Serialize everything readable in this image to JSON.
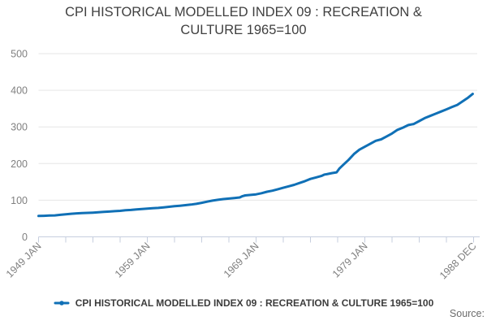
{
  "title": "CPI HISTORICAL MODELLED INDEX 09 : RECREATION & CULTURE 1965=100",
  "legend": {
    "label": "CPI HISTORICAL MODELLED INDEX 09 : RECREATION & CULTURE 1965=100",
    "marker_icon": "line-with-dot-icon"
  },
  "source_label": "Source:",
  "colors": {
    "line": "#1070b6",
    "grid": "#e6e6e6",
    "axis": "#c6cede",
    "tick_text": "#808080",
    "title_text": "#404040",
    "legend_text": "#3c3c3c",
    "source_text": "#6b6b6b",
    "background": "#ffffff"
  },
  "chart_data": {
    "type": "line",
    "title": "CPI HISTORICAL MODELLED INDEX 09 : RECREATION & CULTURE 1965=100",
    "xlabel": "",
    "ylabel": "",
    "grid": "horizontal",
    "legend_position": "bottom",
    "xlim": [
      1949,
      1989
    ],
    "ylim": [
      0,
      500
    ],
    "y_ticks": [
      0,
      100,
      200,
      300,
      400,
      500
    ],
    "x_ticks": [
      {
        "pos": 1949,
        "label": "1949 JAN"
      },
      {
        "pos": 1951.5,
        "label": ""
      },
      {
        "pos": 1954,
        "label": ""
      },
      {
        "pos": 1956.5,
        "label": ""
      },
      {
        "pos": 1959,
        "label": "1959 JAN"
      },
      {
        "pos": 1961.5,
        "label": ""
      },
      {
        "pos": 1964,
        "label": ""
      },
      {
        "pos": 1966.5,
        "label": ""
      },
      {
        "pos": 1969,
        "label": "1969 JAN"
      },
      {
        "pos": 1971.5,
        "label": ""
      },
      {
        "pos": 1974,
        "label": ""
      },
      {
        "pos": 1976.5,
        "label": ""
      },
      {
        "pos": 1979,
        "label": "1979 JAN"
      },
      {
        "pos": 1981.5,
        "label": ""
      },
      {
        "pos": 1984,
        "label": ""
      },
      {
        "pos": 1986.5,
        "label": ""
      },
      {
        "pos": 1989,
        "label": "1988 DEC"
      }
    ],
    "series": [
      {
        "name": "CPI HISTORICAL MODELLED INDEX 09 : RECREATION & CULTURE 1965=100",
        "points": [
          [
            1949,
            57
          ],
          [
            1949.5,
            57.5
          ],
          [
            1950,
            58
          ],
          [
            1950.5,
            58.5
          ],
          [
            1951,
            60
          ],
          [
            1951.5,
            61.5
          ],
          [
            1952,
            63
          ],
          [
            1952.5,
            64
          ],
          [
            1953,
            65
          ],
          [
            1953.5,
            65.5
          ],
          [
            1954,
            66
          ],
          [
            1954.5,
            67
          ],
          [
            1955,
            68
          ],
          [
            1955.5,
            69
          ],
          [
            1956,
            70
          ],
          [
            1956.5,
            71
          ],
          [
            1957,
            72.5
          ],
          [
            1957.5,
            73.5
          ],
          [
            1958,
            75
          ],
          [
            1958.5,
            76
          ],
          [
            1959,
            77
          ],
          [
            1959.5,
            78
          ],
          [
            1960,
            79
          ],
          [
            1960.5,
            80.5
          ],
          [
            1961,
            82
          ],
          [
            1961.5,
            83.5
          ],
          [
            1962,
            85
          ],
          [
            1962.5,
            86.5
          ],
          [
            1963,
            88
          ],
          [
            1963.5,
            90
          ],
          [
            1964,
            93
          ],
          [
            1964.5,
            96
          ],
          [
            1965,
            99
          ],
          [
            1965.5,
            101
          ],
          [
            1966,
            103
          ],
          [
            1966.5,
            104.5
          ],
          [
            1967,
            106
          ],
          [
            1967.5,
            107.5
          ],
          [
            1967.75,
            111
          ],
          [
            1968,
            113
          ],
          [
            1968.5,
            114.5
          ],
          [
            1969,
            116
          ],
          [
            1969.5,
            119
          ],
          [
            1970,
            123
          ],
          [
            1970.5,
            126
          ],
          [
            1971,
            130
          ],
          [
            1971.5,
            134
          ],
          [
            1972,
            138
          ],
          [
            1972.5,
            142
          ],
          [
            1973,
            147
          ],
          [
            1973.5,
            152
          ],
          [
            1974,
            158
          ],
          [
            1974.5,
            162
          ],
          [
            1975,
            166
          ],
          [
            1975.3,
            170
          ],
          [
            1975.5,
            171
          ],
          [
            1976,
            174
          ],
          [
            1976.4,
            176
          ],
          [
            1976.65,
            186
          ],
          [
            1977,
            196
          ],
          [
            1977.5,
            210
          ],
          [
            1978,
            226
          ],
          [
            1978.5,
            238
          ],
          [
            1979,
            246
          ],
          [
            1979.5,
            254
          ],
          [
            1980,
            262
          ],
          [
            1980.5,
            266
          ],
          [
            1981,
            274
          ],
          [
            1981.5,
            282
          ],
          [
            1982,
            292
          ],
          [
            1982.5,
            298
          ],
          [
            1983,
            305
          ],
          [
            1983.5,
            308
          ],
          [
            1984,
            316
          ],
          [
            1984.5,
            324
          ],
          [
            1985,
            330
          ],
          [
            1985.5,
            336
          ],
          [
            1986,
            342
          ],
          [
            1986.5,
            348
          ],
          [
            1987,
            354
          ],
          [
            1987.5,
            360
          ],
          [
            1988,
            370
          ],
          [
            1988.5,
            380
          ],
          [
            1988.92,
            390
          ]
        ]
      }
    ]
  }
}
